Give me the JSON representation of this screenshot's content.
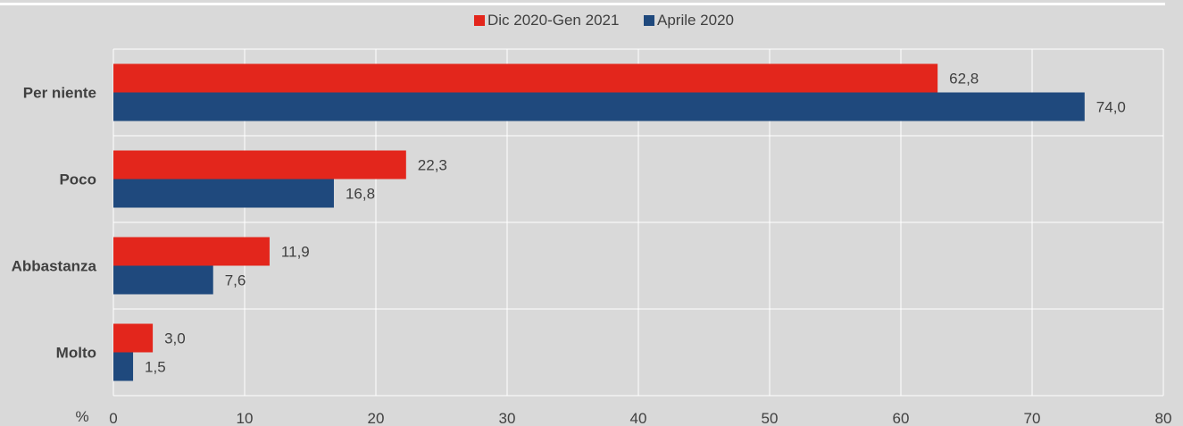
{
  "colors": {
    "background": "#d9d9d9",
    "grid": "#ffffff",
    "series_red": "#e3261c",
    "series_blue": "#1f497d",
    "text": "#404040"
  },
  "chart_data": {
    "type": "bar",
    "orientation": "horizontal",
    "categories": [
      "Per niente",
      "Poco",
      "Abbastanza",
      "Molto"
    ],
    "series": [
      {
        "name": "Dic 2020-Gen 2021",
        "color": "#e3261c",
        "values": [
          62.8,
          22.3,
          11.9,
          3.0
        ],
        "labels": [
          "62,8",
          "22,3",
          "11,9",
          "3,0"
        ]
      },
      {
        "name": "Aprile 2020",
        "color": "#1f497d",
        "values": [
          74.0,
          16.8,
          7.6,
          1.5
        ],
        "labels": [
          "74,0",
          "16,8",
          "7,6",
          "1,5"
        ]
      }
    ],
    "xlim": [
      0,
      80
    ],
    "xticks": [
      0,
      10,
      20,
      30,
      40,
      50,
      60,
      70,
      80
    ],
    "xtick_labels": [
      "0",
      "10",
      "20",
      "30",
      "40",
      "50",
      "60",
      "70",
      "80"
    ],
    "unit_label": "%",
    "grid": true,
    "legend_position": "top-center"
  }
}
